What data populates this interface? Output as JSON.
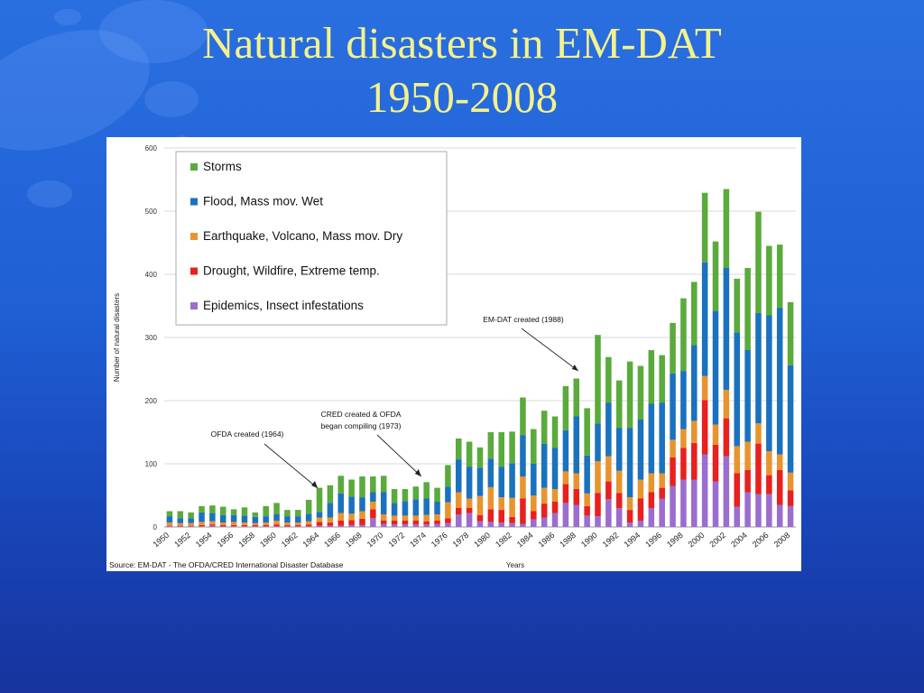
{
  "slide": {
    "title_line1": "Natural disasters in EM-DAT",
    "title_line2": "1950-2008"
  },
  "chart_data": {
    "type": "bar",
    "stacked": true,
    "ylabel": "Number of natural disasters",
    "xlabel": "Years",
    "ylim": [
      0,
      600
    ],
    "yticks": [
      0,
      100,
      200,
      300,
      400,
      500,
      600
    ],
    "grid": true,
    "legend_position": "top-left",
    "source": "Source: EM-DAT - The OFDA/CRED International Disaster Database",
    "categories": [
      1950,
      1951,
      1952,
      1953,
      1954,
      1955,
      1956,
      1957,
      1958,
      1959,
      1960,
      1961,
      1962,
      1963,
      1964,
      1965,
      1966,
      1967,
      1968,
      1969,
      1970,
      1971,
      1972,
      1973,
      1974,
      1975,
      1976,
      1977,
      1978,
      1979,
      1980,
      1981,
      1982,
      1983,
      1984,
      1985,
      1986,
      1987,
      1988,
      1989,
      1990,
      1991,
      1992,
      1993,
      1994,
      1995,
      1996,
      1997,
      1998,
      1999,
      2000,
      2001,
      2002,
      2003,
      2004,
      2005,
      2006,
      2007,
      2008
    ],
    "tick_labels": [
      "1950",
      "1952",
      "1954",
      "1956",
      "1958",
      "1960",
      "1962",
      "1964",
      "1966",
      "1968",
      "1970",
      "1972",
      "1974",
      "1976",
      "1978",
      "1980",
      "1982",
      "1984",
      "1986",
      "1988",
      "1990",
      "1992",
      "1994",
      "1996",
      "1998",
      "2000",
      "2002",
      "2004",
      "2006",
      "2008"
    ],
    "series": [
      {
        "name": "Epidemics, Insect infestations",
        "color": "#9b6dcf",
        "values": [
          1,
          1,
          1,
          1,
          2,
          1,
          1,
          1,
          1,
          1,
          1,
          1,
          1,
          1,
          2,
          2,
          2,
          3,
          3,
          14,
          5,
          4,
          4,
          4,
          4,
          5,
          6,
          20,
          22,
          9,
          8,
          7,
          6,
          5,
          12,
          15,
          22,
          38,
          35,
          18,
          17,
          44,
          30,
          7,
          10,
          30,
          45,
          65,
          75,
          75,
          115,
          72,
          112,
          32,
          55,
          52,
          52,
          35,
          33
        ]
      },
      {
        "name": "Drought, Wildfire, Extreme temp.",
        "color": "#e8201e",
        "values": [
          1,
          1,
          1,
          2,
          2,
          2,
          2,
          2,
          2,
          2,
          3,
          2,
          2,
          3,
          6,
          5,
          8,
          8,
          10,
          14,
          5,
          6,
          6,
          6,
          5,
          5,
          8,
          10,
          8,
          10,
          20,
          20,
          10,
          40,
          13,
          22,
          18,
          30,
          25,
          15,
          37,
          28,
          24,
          20,
          35,
          25,
          17,
          45,
          50,
          58,
          86,
          58,
          60,
          53,
          35,
          80,
          30,
          55,
          25
        ]
      },
      {
        "name": "Earthquake, Volcano, Mass mov. Dry",
        "color": "#e8942e",
        "values": [
          5,
          4,
          4,
          5,
          5,
          4,
          5,
          4,
          3,
          4,
          6,
          4,
          4,
          5,
          7,
          8,
          12,
          10,
          12,
          12,
          10,
          8,
          8,
          8,
          10,
          10,
          25,
          25,
          15,
          30,
          35,
          20,
          30,
          35,
          25,
          25,
          20,
          20,
          25,
          20,
          50,
          40,
          35,
          20,
          30,
          30,
          23,
          28,
          30,
          35,
          38,
          32,
          45,
          43,
          45,
          32,
          38,
          25,
          28
        ]
      },
      {
        "name": "Flood, Mass mov. Wet",
        "color": "#1a72bf",
        "values": [
          10,
          8,
          8,
          15,
          13,
          12,
          11,
          11,
          10,
          10,
          10,
          10,
          10,
          12,
          9,
          23,
          31,
          27,
          22,
          15,
          35,
          20,
          23,
          26,
          26,
          20,
          25,
          52,
          50,
          45,
          45,
          48,
          55,
          65,
          50,
          70,
          65,
          65,
          90,
          60,
          60,
          85,
          68,
          110,
          95,
          110,
          112,
          105,
          92,
          120,
          180,
          180,
          193,
          180,
          145,
          175,
          215,
          232,
          170
        ]
      },
      {
        "name": "Storms",
        "color": "#5aaa3c",
        "values": [
          8,
          11,
          9,
          10,
          12,
          13,
          9,
          13,
          7,
          16,
          18,
          10,
          10,
          22,
          38,
          28,
          28,
          27,
          33,
          25,
          26,
          22,
          19,
          20,
          26,
          22,
          34,
          33,
          40,
          32,
          42,
          55,
          50,
          60,
          55,
          52,
          50,
          70,
          60,
          75,
          140,
          72,
          75,
          105,
          85,
          85,
          75,
          80,
          115,
          100,
          110,
          110,
          125,
          85,
          130,
          160,
          110,
          100,
          100
        ]
      }
    ],
    "annotations": [
      {
        "text": "OFDA created (1964)",
        "year": 1964
      },
      {
        "text": "CRED created & OFDA",
        "text2": "began compiling (1973)",
        "year": 1973
      },
      {
        "text": "EM-DAT created (1988)",
        "year": 1988
      }
    ]
  }
}
